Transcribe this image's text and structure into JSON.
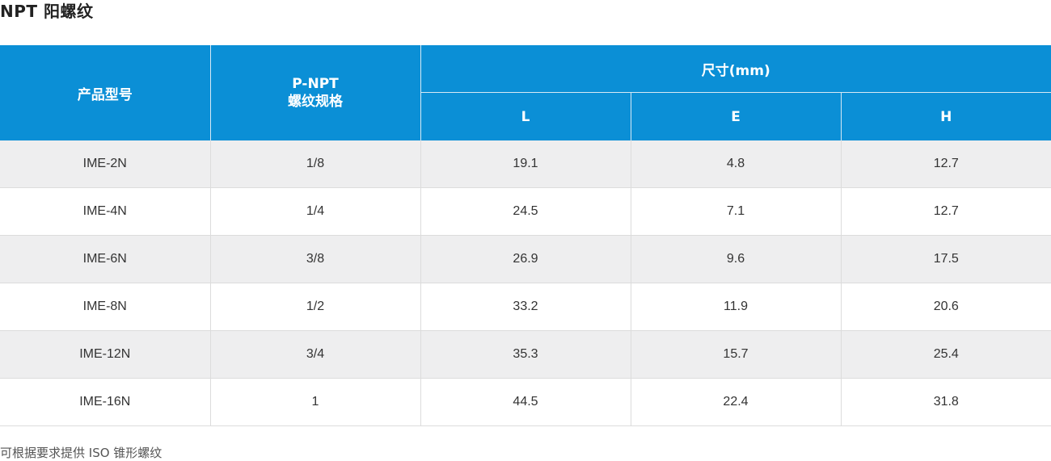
{
  "title": "NPT 阳螺纹",
  "table": {
    "headers": {
      "model": "产品型号",
      "thread_line1": "P-NPT",
      "thread_line2": "螺纹规格",
      "size_group": "尺寸(mm)",
      "L": "L",
      "E": "E",
      "H": "H"
    },
    "rows": [
      {
        "model": "IME-2N",
        "thread": "1/8",
        "L": "19.1",
        "E": "4.8",
        "H": "12.7"
      },
      {
        "model": "IME-4N",
        "thread": "1/4",
        "L": "24.5",
        "E": "7.1",
        "H": "12.7"
      },
      {
        "model": "IME-6N",
        "thread": "3/8",
        "L": "26.9",
        "E": "9.6",
        "H": "17.5"
      },
      {
        "model": "IME-8N",
        "thread": "1/2",
        "L": "33.2",
        "E": "11.9",
        "H": "20.6"
      },
      {
        "model": "IME-12N",
        "thread": "3/4",
        "L": "35.3",
        "E": "15.7",
        "H": "25.4"
      },
      {
        "model": "IME-16N",
        "thread": "1",
        "L": "44.5",
        "E": "22.4",
        "H": "31.8"
      }
    ]
  },
  "footnote": "可根据要求提供 ISO 锥形螺纹",
  "colors": {
    "header_bg": "#0b8fd6",
    "row_alt_bg": "#eeeeef"
  }
}
